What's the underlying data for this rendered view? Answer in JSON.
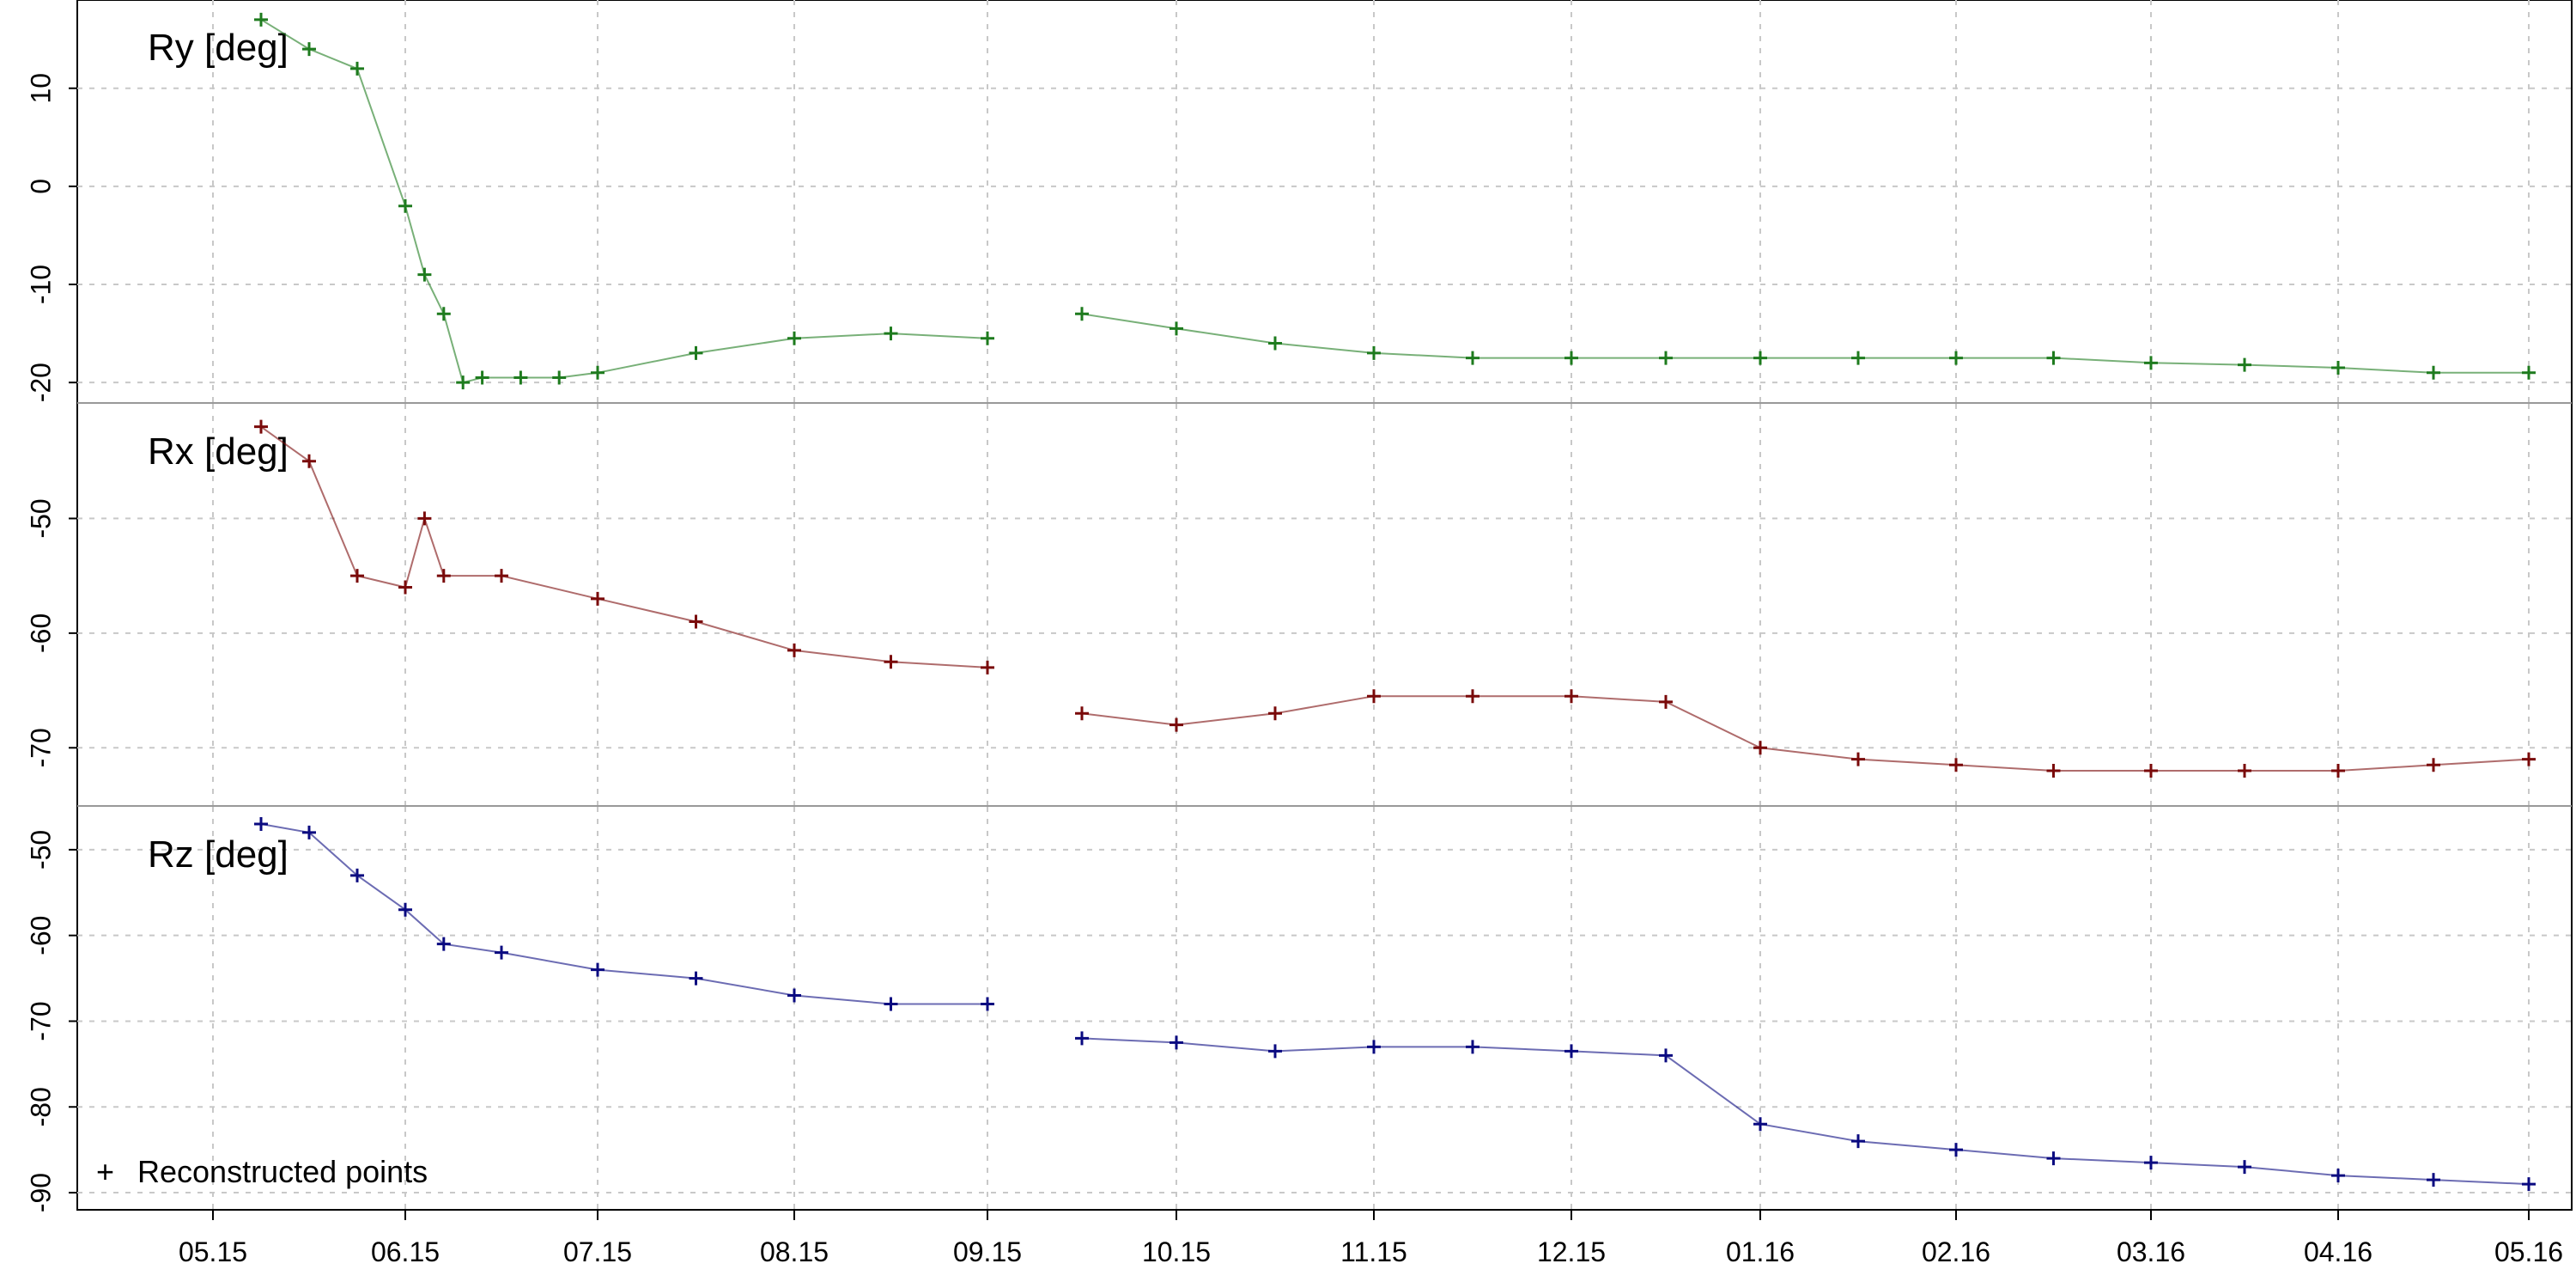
{
  "chart_data": [
    {
      "type": "scatter",
      "panel": "Ry",
      "label": "Ry  [deg]",
      "color": "#1e7b1e",
      "ylim": [
        -22,
        19
      ],
      "yticks": [
        10,
        0,
        -10,
        -20
      ],
      "xlim": [
        0,
        12.5
      ],
      "x": [
        0.25,
        0.5,
        0.75,
        1.0,
        1.1,
        1.2,
        1.3,
        1.4,
        1.6,
        1.8,
        2.0,
        2.5,
        3.0,
        3.5,
        4.0,
        4.5,
        5.0,
        5.5,
        6.0,
        6.5,
        7.0,
        7.5,
        8.0,
        8.5,
        9.0,
        9.5,
        10.0,
        10.5,
        11.0,
        11.5,
        12.0
      ],
      "values": [
        17,
        14,
        12,
        -2,
        -9,
        -13,
        -20,
        -19.5,
        -19.5,
        -19.5,
        -19,
        -17,
        -15.5,
        -15,
        -15.5,
        -13,
        -14.5,
        -16,
        -17,
        -17.5,
        -17.5,
        -17.5,
        -17.5,
        -17.5,
        -17.5,
        -17.5,
        -18,
        -18.2,
        -18.5,
        -19,
        -19
      ]
    },
    {
      "type": "scatter",
      "panel": "Rx",
      "label": "Rx  [deg]",
      "color": "#7a0a0a",
      "ylim": [
        -75,
        -40
      ],
      "yticks": [
        -50,
        -60,
        -70
      ],
      "xlim": [
        0,
        12.5
      ],
      "x": [
        0.25,
        0.5,
        0.75,
        1.0,
        1.1,
        1.2,
        1.5,
        2.0,
        2.5,
        3.0,
        3.5,
        4.0,
        4.5,
        5.0,
        5.5,
        6.0,
        6.5,
        7.0,
        7.5,
        8.0,
        8.5,
        9.0,
        9.5,
        10.0,
        10.5,
        11.0,
        11.5,
        12.0
      ],
      "values": [
        -42,
        -45,
        -55,
        -56,
        -50,
        -55,
        -55,
        -57,
        -59,
        -61.5,
        -62.5,
        -63,
        -67,
        -68,
        -67,
        -65.5,
        -65.5,
        -65.5,
        -66,
        -70,
        -71,
        -71.5,
        -72,
        -72,
        -72,
        -72,
        -71.5,
        -71
      ]
    },
    {
      "type": "scatter",
      "panel": "Rz",
      "label": "Rz  [deg]",
      "color": "#0a0a80",
      "ylim": [
        -92,
        -45
      ],
      "yticks": [
        -50,
        -60,
        -70,
        -80,
        -90
      ],
      "xlim": [
        0,
        12.5
      ],
      "x": [
        0.25,
        0.5,
        0.75,
        1.0,
        1.2,
        1.5,
        2.0,
        2.5,
        3.0,
        3.5,
        4.0,
        4.5,
        5.0,
        5.5,
        6.0,
        6.5,
        7.0,
        7.5,
        8.0,
        8.5,
        9.0,
        9.5,
        10.0,
        10.5,
        11.0,
        11.5,
        12.0
      ],
      "values": [
        -47,
        -48,
        -53,
        -57,
        -61,
        -62,
        -64,
        -65,
        -67,
        -68,
        -68,
        -72,
        -72.5,
        -73.5,
        -73,
        -73,
        -73.5,
        -74,
        -82,
        -84,
        -85,
        -86,
        -86.5,
        -87,
        -88,
        -88.5,
        -89
      ]
    }
  ],
  "x_tick_labels": [
    "05.15",
    "06.15",
    "07.15",
    "08.15",
    "09.15",
    "10.15",
    "11.15",
    "12.15",
    "01.16",
    "02.16",
    "03.16",
    "04.16",
    "05.16"
  ],
  "legend": {
    "marker": "+",
    "label": "Reconstructed points"
  }
}
